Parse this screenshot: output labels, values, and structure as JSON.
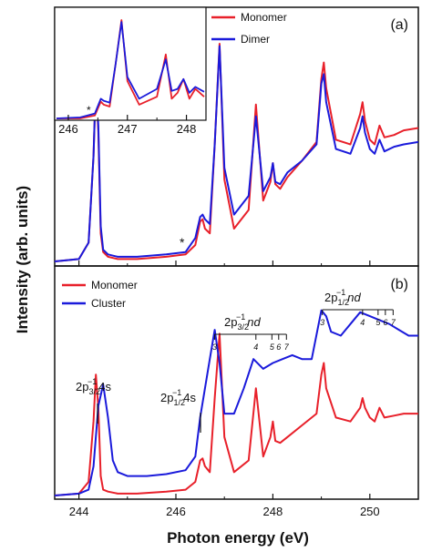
{
  "xlabel": "Photon energy (eV)",
  "ylabel": "Intensity (arb. units)",
  "colors": {
    "red": "#e8202a",
    "blue": "#1a1adb"
  },
  "chart_data": [
    {
      "id": "a",
      "type": "line",
      "panel_label": "(a)",
      "xlim": [
        243.5,
        251.0
      ],
      "xticks": [
        244,
        246,
        248,
        250
      ],
      "legend": [
        "Monomer",
        "Dimer"
      ],
      "legend_position": "top-right",
      "annotations": [
        "*"
      ],
      "series": [
        {
          "name": "Monomer",
          "color": "#e8202a",
          "x": [
            243.5,
            244.0,
            244.2,
            244.3,
            244.35,
            244.4,
            244.45,
            244.5,
            244.6,
            244.8,
            245.2,
            245.8,
            246.2,
            246.4,
            246.5,
            246.55,
            246.6,
            246.7,
            246.8,
            246.9,
            247.0,
            247.2,
            247.5,
            247.65,
            247.8,
            247.95,
            248.0,
            248.05,
            248.15,
            248.3,
            248.6,
            248.9,
            249.0,
            249.05,
            249.1,
            249.3,
            249.6,
            249.8,
            249.85,
            249.9,
            250.0,
            250.1,
            250.2,
            250.3,
            250.5,
            250.7,
            251.0
          ],
          "y": [
            0.0,
            0.01,
            0.08,
            0.45,
            0.77,
            0.55,
            0.12,
            0.04,
            0.02,
            0.01,
            0.01,
            0.02,
            0.03,
            0.07,
            0.17,
            0.18,
            0.14,
            0.12,
            0.5,
            0.93,
            0.35,
            0.14,
            0.22,
            0.67,
            0.26,
            0.34,
            0.42,
            0.33,
            0.31,
            0.36,
            0.43,
            0.51,
            0.78,
            0.85,
            0.74,
            0.52,
            0.5,
            0.63,
            0.68,
            0.6,
            0.52,
            0.5,
            0.58,
            0.53,
            0.54,
            0.56,
            0.57
          ]
        },
        {
          "name": "Dimer",
          "color": "#1a1adb",
          "x": [
            243.5,
            244.0,
            244.2,
            244.3,
            244.35,
            244.4,
            244.45,
            244.5,
            244.6,
            244.8,
            245.2,
            245.8,
            246.2,
            246.4,
            246.5,
            246.55,
            246.6,
            246.7,
            246.8,
            246.9,
            247.0,
            247.2,
            247.5,
            247.65,
            247.8,
            247.95,
            248.0,
            248.05,
            248.15,
            248.3,
            248.6,
            248.9,
            249.0,
            249.05,
            249.1,
            249.3,
            249.6,
            249.8,
            249.85,
            249.9,
            250.0,
            250.1,
            250.2,
            250.3,
            250.5,
            250.7,
            251.0
          ],
          "y": [
            0.0,
            0.01,
            0.08,
            0.45,
            0.77,
            0.58,
            0.15,
            0.05,
            0.03,
            0.02,
            0.02,
            0.03,
            0.04,
            0.1,
            0.19,
            0.2,
            0.18,
            0.16,
            0.5,
            0.92,
            0.4,
            0.2,
            0.28,
            0.62,
            0.3,
            0.36,
            0.42,
            0.34,
            0.33,
            0.38,
            0.43,
            0.5,
            0.76,
            0.8,
            0.68,
            0.48,
            0.46,
            0.57,
            0.62,
            0.55,
            0.48,
            0.46,
            0.52,
            0.47,
            0.49,
            0.5,
            0.51
          ]
        }
      ]
    },
    {
      "id": "a-inset",
      "type": "line",
      "xlim": [
        245.8,
        248.3
      ],
      "xticks": [
        246,
        247,
        248
      ],
      "annotations": [
        "*"
      ],
      "series": [
        {
          "name": "Monomer",
          "color": "#e8202a",
          "x": [
            245.8,
            246.2,
            246.45,
            246.55,
            246.6,
            246.7,
            246.8,
            246.9,
            247.0,
            247.2,
            247.5,
            247.65,
            247.75,
            247.85,
            247.95,
            248.05,
            248.15,
            248.3
          ],
          "y": [
            0.0,
            0.0,
            0.03,
            0.17,
            0.14,
            0.12,
            0.55,
            1.0,
            0.38,
            0.14,
            0.22,
            0.65,
            0.2,
            0.26,
            0.4,
            0.2,
            0.3,
            0.22
          ]
        },
        {
          "name": "Dimer",
          "color": "#1a1adb",
          "x": [
            245.8,
            246.2,
            246.45,
            246.55,
            246.6,
            246.7,
            246.8,
            246.9,
            247.0,
            247.2,
            247.5,
            247.65,
            247.75,
            247.85,
            247.95,
            248.05,
            248.15,
            248.3
          ],
          "y": [
            0.0,
            0.01,
            0.05,
            0.2,
            0.18,
            0.16,
            0.55,
            0.98,
            0.42,
            0.2,
            0.3,
            0.6,
            0.28,
            0.3,
            0.4,
            0.26,
            0.32,
            0.27
          ]
        }
      ]
    },
    {
      "id": "b",
      "type": "line",
      "panel_label": "(b)",
      "xlim": [
        243.5,
        251.0
      ],
      "xticks": [
        244,
        246,
        248,
        250
      ],
      "legend": [
        "Monomer",
        "Cluster"
      ],
      "legend_position": "top-left",
      "series": [
        {
          "name": "Monomer",
          "color": "#e8202a",
          "x": [
            243.5,
            244.0,
            244.2,
            244.3,
            244.35,
            244.4,
            244.45,
            244.5,
            244.6,
            244.8,
            245.2,
            245.8,
            246.2,
            246.4,
            246.5,
            246.55,
            246.6,
            246.7,
            246.8,
            246.9,
            247.0,
            247.2,
            247.5,
            247.65,
            247.8,
            247.95,
            248.0,
            248.05,
            248.15,
            248.3,
            248.6,
            248.9,
            249.0,
            249.05,
            249.1,
            249.3,
            249.6,
            249.8,
            249.85,
            249.9,
            250.0,
            250.1,
            250.2,
            250.3,
            250.5,
            250.7,
            251.0
          ],
          "y": [
            0.0,
            0.01,
            0.07,
            0.38,
            0.62,
            0.45,
            0.1,
            0.03,
            0.02,
            0.01,
            0.01,
            0.02,
            0.03,
            0.07,
            0.18,
            0.19,
            0.15,
            0.12,
            0.5,
            0.83,
            0.3,
            0.12,
            0.18,
            0.55,
            0.2,
            0.3,
            0.38,
            0.28,
            0.27,
            0.3,
            0.36,
            0.42,
            0.62,
            0.68,
            0.55,
            0.4,
            0.38,
            0.45,
            0.5,
            0.45,
            0.4,
            0.38,
            0.45,
            0.4,
            0.41,
            0.42,
            0.42
          ]
        },
        {
          "name": "Cluster",
          "color": "#1a1adb",
          "x": [
            243.5,
            244.0,
            244.2,
            244.3,
            244.4,
            244.5,
            244.6,
            244.7,
            244.8,
            245.0,
            245.4,
            245.8,
            246.2,
            246.4,
            246.5,
            246.6,
            246.7,
            246.8,
            246.9,
            247.0,
            247.2,
            247.4,
            247.6,
            247.8,
            248.0,
            248.2,
            248.4,
            248.6,
            248.8,
            249.0,
            249.1,
            249.2,
            249.4,
            249.6,
            249.8,
            250.0,
            250.2,
            250.4,
            250.6,
            250.8,
            251.0
          ],
          "y": [
            0.0,
            0.01,
            0.03,
            0.15,
            0.46,
            0.57,
            0.4,
            0.18,
            0.12,
            0.1,
            0.1,
            0.11,
            0.13,
            0.2,
            0.4,
            0.55,
            0.7,
            0.85,
            0.68,
            0.42,
            0.42,
            0.55,
            0.7,
            0.65,
            0.68,
            0.7,
            0.72,
            0.7,
            0.7,
            0.95,
            0.92,
            0.84,
            0.82,
            0.88,
            0.94,
            0.92,
            0.9,
            0.88,
            0.85,
            0.82,
            0.82
          ]
        }
      ]
    }
  ],
  "annotations_b": {
    "s4_32_main": "2p",
    "s4_32_sub": "3/2",
    "s4_32_sup": "−1",
    "s4_32_tail": "4s",
    "s4_12_main": "2p",
    "s4_12_sub": "1/2",
    "s4_12_sup": "−1",
    "s4_12_tail": "4s",
    "nd32_main": "2p",
    "nd32_sub": "3/2",
    "nd32_sup": "−1",
    "nd32_tail": "nd",
    "nd12_main": "2p",
    "nd12_sub": "1/2",
    "nd12_sup": "−1",
    "nd12_tail": "nd",
    "nd32_ticks": [
      "3",
      "4",
      "5",
      "6",
      "7"
    ],
    "nd12_ticks": [
      "3",
      "4",
      "5",
      "6",
      "7"
    ]
  }
}
